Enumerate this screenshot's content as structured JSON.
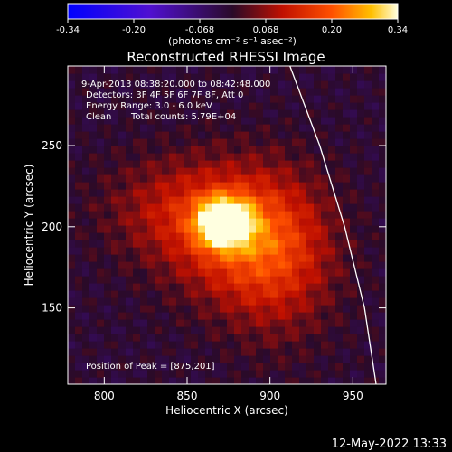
{
  "chart_data": {
    "type": "heatmap",
    "title": "Reconstructed RHESSI Image",
    "xlabel": "Heliocentric X (arcsec)",
    "ylabel": "Heliocentric Y (arcsec)",
    "xlim": [
      778,
      970
    ],
    "ylim": [
      103,
      299
    ],
    "xticks": [
      800,
      850,
      900,
      950
    ],
    "yticks": [
      150,
      200,
      250
    ],
    "colorbar": {
      "ticks": [
        "-0.34",
        "-0.20",
        "-0.068",
        "0.068",
        "0.20",
        "0.34"
      ],
      "range": [
        -0.34,
        0.34
      ],
      "unit_label": "(photons cm⁻² s⁻¹ asec⁻²)"
    },
    "annotations": {
      "time_range": "9-Apr-2013 08:38:20.000 to 08:42:48.000",
      "detectors": "Detectors: 3F 4F 5F 6F 7F 8F, Att 0",
      "energy_range": "Energy Range: 3.0 - 6.0 keV",
      "clean": "Clean",
      "total_counts": "Total counts: 5.79E+04",
      "peak": "Position of Peak = [875,201]"
    },
    "peak_position": [
      875,
      201
    ],
    "sources": [
      {
        "center": [
          872,
          203
        ],
        "sigma": [
          11,
          10
        ],
        "amplitude": 0.34
      },
      {
        "center": [
          880,
          196
        ],
        "sigma": [
          30,
          28
        ],
        "amplitude": 0.16
      },
      {
        "center": [
          905,
          180
        ],
        "sigma": [
          24,
          34
        ],
        "amplitude": 0.11
      },
      {
        "center": [
          840,
          212
        ],
        "sigma": [
          30,
          22
        ],
        "amplitude": 0.08
      }
    ],
    "limb": {
      "type": "solar-limb-arc",
      "points": [
        [
          912,
          299
        ],
        [
          930,
          250
        ],
        [
          945,
          200
        ],
        [
          957,
          150
        ],
        [
          964,
          103
        ]
      ]
    }
  },
  "footer": {
    "timestamp": "12-May-2022 13:33"
  }
}
